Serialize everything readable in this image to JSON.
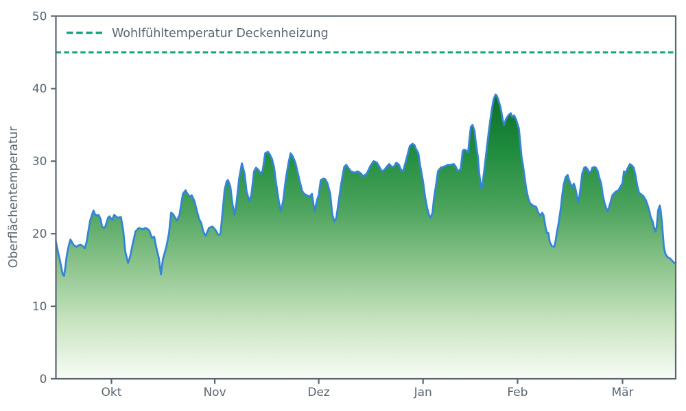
{
  "figure": {
    "background": "#ffffff",
    "axis_color": "#5a6570",
    "text_color": "#5a6570"
  },
  "chart_data": {
    "type": "area",
    "title": "",
    "xlabel": "",
    "ylabel": "Oberflächentemperatur",
    "ylim": [
      0,
      50
    ],
    "xlim_days": [
      0,
      183
    ],
    "grid": false,
    "y_ticks": [
      0,
      10,
      20,
      30,
      40,
      50
    ],
    "x_ticks": [
      {
        "day": 16.4,
        "label": "Okt"
      },
      {
        "day": 46.9,
        "label": "Nov"
      },
      {
        "day": 77.6,
        "label": "Dez"
      },
      {
        "day": 108.4,
        "label": "Jan"
      },
      {
        "day": 136.3,
        "label": "Feb"
      },
      {
        "day": 167.3,
        "label": "Mär"
      }
    ],
    "threshold": {
      "label": "Wohlfühltemperatur Deckenheizung",
      "value": 45,
      "color": "#12a57c",
      "style": "dashed"
    },
    "legend_position": "upper left",
    "series": [
      {
        "name": "Oberflächentemperatur",
        "line_color": "#3585d6",
        "fill_gradient": [
          "#0d6d26",
          "#1f8c3e",
          "#4ba35c",
          "#8cc48c",
          "#c8e4c0",
          "#f8fcf6"
        ],
        "points": [
          [
            0,
            18.9
          ],
          [
            0.6,
            17.5
          ],
          [
            1.2,
            16.3
          ],
          [
            2,
            14.4
          ],
          [
            2.4,
            14.2
          ],
          [
            2.8,
            15.4
          ],
          [
            3.2,
            17
          ],
          [
            3.8,
            18.4
          ],
          [
            4.3,
            19.2
          ],
          [
            4.9,
            18.7
          ],
          [
            5.3,
            18.4
          ],
          [
            6.1,
            18.2
          ],
          [
            6.7,
            18.4
          ],
          [
            7.3,
            18.5
          ],
          [
            8.1,
            18.2
          ],
          [
            8.5,
            18
          ],
          [
            9.1,
            18.9
          ],
          [
            9.5,
            20.1
          ],
          [
            10.1,
            21.8
          ],
          [
            11.1,
            23.2
          ],
          [
            11.5,
            22.7
          ],
          [
            12.2,
            22.5
          ],
          [
            12.6,
            22.6
          ],
          [
            13.2,
            22
          ],
          [
            13.6,
            21
          ],
          [
            14.2,
            20.8
          ],
          [
            14.6,
            21
          ],
          [
            15.4,
            22.2
          ],
          [
            15.8,
            22.4
          ],
          [
            16.6,
            21.9
          ],
          [
            17.2,
            22.6
          ],
          [
            18.2,
            22.2
          ],
          [
            19.2,
            22.3
          ],
          [
            19.9,
            20.4
          ],
          [
            20.5,
            17.5
          ],
          [
            21.3,
            16
          ],
          [
            21.9,
            16.8
          ],
          [
            22.5,
            18.2
          ],
          [
            23.5,
            20.3
          ],
          [
            24.5,
            20.8
          ],
          [
            25.5,
            20.6
          ],
          [
            26.5,
            20.8
          ],
          [
            27.5,
            20.5
          ],
          [
            28.4,
            19.4
          ],
          [
            29,
            19.6
          ],
          [
            29.6,
            18.2
          ],
          [
            30.4,
            16.6
          ],
          [
            31,
            14.4
          ],
          [
            31.6,
            16.5
          ],
          [
            32.6,
            18.2
          ],
          [
            33.4,
            20.1
          ],
          [
            34,
            22.9
          ],
          [
            34.6,
            22.7
          ],
          [
            35.7,
            21.8
          ],
          [
            36.5,
            22.6
          ],
          [
            37.5,
            25.5
          ],
          [
            38.3,
            26
          ],
          [
            38.7,
            25.6
          ],
          [
            39.5,
            25.1
          ],
          [
            40.1,
            25.3
          ],
          [
            40.9,
            24.5
          ],
          [
            41.7,
            23
          ],
          [
            42.3,
            22
          ],
          [
            42.9,
            21.5
          ],
          [
            43.5,
            20.3
          ],
          [
            44.2,
            19.7
          ],
          [
            45.2,
            20.8
          ],
          [
            46.2,
            21
          ],
          [
            47,
            20.6
          ],
          [
            48,
            19.8
          ],
          [
            48.6,
            20
          ],
          [
            49.2,
            22.9
          ],
          [
            49.8,
            26
          ],
          [
            50.4,
            27.2
          ],
          [
            50.8,
            27.4
          ],
          [
            51.5,
            26.5
          ],
          [
            52.1,
            24.2
          ],
          [
            52.7,
            22.6
          ],
          [
            53.3,
            24.2
          ],
          [
            54.1,
            27.6
          ],
          [
            54.9,
            29.7
          ],
          [
            55.7,
            28.3
          ],
          [
            56.3,
            25.8
          ],
          [
            57.1,
            24.5
          ],
          [
            57.7,
            25.3
          ],
          [
            58.5,
            28.6
          ],
          [
            59.1,
            29.1
          ],
          [
            59.8,
            28.8
          ],
          [
            60.4,
            28.3
          ],
          [
            61,
            28.6
          ],
          [
            61.8,
            31.1
          ],
          [
            62.6,
            31.3
          ],
          [
            63.2,
            30.9
          ],
          [
            63.8,
            30.3
          ],
          [
            64.4,
            29.2
          ],
          [
            65,
            27
          ],
          [
            65.8,
            24.5
          ],
          [
            66.4,
            23.1
          ],
          [
            67.1,
            24.5
          ],
          [
            67.9,
            27.6
          ],
          [
            68.7,
            29.8
          ],
          [
            69.3,
            31.1
          ],
          [
            69.9,
            30.7
          ],
          [
            70.7,
            29.8
          ],
          [
            71.3,
            28.6
          ],
          [
            71.9,
            27.4
          ],
          [
            72.7,
            25.9
          ],
          [
            73.3,
            25.5
          ],
          [
            74.1,
            25.3
          ],
          [
            74.9,
            25.1
          ],
          [
            75.6,
            25.5
          ],
          [
            76,
            24.2
          ],
          [
            76.4,
            23.1
          ],
          [
            77.2,
            24.8
          ],
          [
            77.6,
            25.3
          ],
          [
            78.2,
            27.4
          ],
          [
            79,
            27.6
          ],
          [
            79.6,
            27.5
          ],
          [
            80.2,
            26.9
          ],
          [
            81,
            25.5
          ],
          [
            81.6,
            22.6
          ],
          [
            82.2,
            21.7
          ],
          [
            82.8,
            22.2
          ],
          [
            83.5,
            24.5
          ],
          [
            84.1,
            26.5
          ],
          [
            85.1,
            29.2
          ],
          [
            85.7,
            29.5
          ],
          [
            86.3,
            29.1
          ],
          [
            87.1,
            28.6
          ],
          [
            88.1,
            28.4
          ],
          [
            89.1,
            28.6
          ],
          [
            90.1,
            28.3
          ],
          [
            90.7,
            27.9
          ],
          [
            91.8,
            28.3
          ],
          [
            92.8,
            29.3
          ],
          [
            93.8,
            30
          ],
          [
            94.8,
            29.8
          ],
          [
            95.4,
            29.3
          ],
          [
            96.2,
            28.6
          ],
          [
            97,
            28.8
          ],
          [
            97.8,
            29.3
          ],
          [
            98.4,
            29.6
          ],
          [
            99.2,
            29.2
          ],
          [
            99.9,
            29.3
          ],
          [
            100.5,
            29.8
          ],
          [
            101.3,
            29.5
          ],
          [
            101.9,
            28.8
          ],
          [
            102.5,
            28.6
          ],
          [
            103.5,
            30.3
          ],
          [
            104.5,
            32.1
          ],
          [
            105.3,
            32.4
          ],
          [
            105.9,
            32.2
          ],
          [
            106.3,
            31.7
          ],
          [
            107,
            31.1
          ],
          [
            107.6,
            29.3
          ],
          [
            108.4,
            27.2
          ],
          [
            109,
            25.1
          ],
          [
            109.6,
            23.6
          ],
          [
            110.2,
            22.5
          ],
          [
            110.6,
            22.2
          ],
          [
            111.2,
            22.9
          ],
          [
            111.6,
            24.8
          ],
          [
            112.4,
            27.2
          ],
          [
            112.8,
            28.6
          ],
          [
            113.6,
            29.1
          ],
          [
            114.2,
            29.2
          ],
          [
            114.9,
            29.3
          ],
          [
            115.7,
            29.5
          ],
          [
            116.5,
            29.5
          ],
          [
            117.5,
            29.6
          ],
          [
            118.1,
            29.2
          ],
          [
            118.7,
            28.6
          ],
          [
            119.5,
            28.9
          ],
          [
            120.1,
            31.4
          ],
          [
            120.5,
            31.6
          ],
          [
            121.1,
            31.5
          ],
          [
            121.7,
            31.2
          ],
          [
            122.1,
            33
          ],
          [
            122.5,
            34.7
          ],
          [
            123,
            35
          ],
          [
            123.6,
            34.2
          ],
          [
            124,
            32.5
          ],
          [
            124.6,
            30.5
          ],
          [
            125,
            28.3
          ],
          [
            125.6,
            26.2
          ],
          [
            126,
            27
          ],
          [
            126.6,
            29.2
          ],
          [
            127.2,
            31.7
          ],
          [
            127.8,
            34.1
          ],
          [
            128.6,
            36.8
          ],
          [
            129.2,
            38.5
          ],
          [
            129.8,
            39.2
          ],
          [
            130.2,
            39
          ],
          [
            130.6,
            38.5
          ],
          [
            131.3,
            37.4
          ],
          [
            131.9,
            35.8
          ],
          [
            132.3,
            35
          ],
          [
            132.9,
            35.8
          ],
          [
            133.7,
            36.4
          ],
          [
            134.3,
            36.6
          ],
          [
            134.7,
            36.1
          ],
          [
            135.3,
            36.3
          ],
          [
            135.9,
            35.7
          ],
          [
            136.7,
            34.5
          ],
          [
            137.5,
            30.5
          ],
          [
            137.9,
            29.5
          ],
          [
            138.8,
            26.4
          ],
          [
            139.4,
            25
          ],
          [
            140,
            24.2
          ],
          [
            140.8,
            23.9
          ],
          [
            141.4,
            23.8
          ],
          [
            141.8,
            23.7
          ],
          [
            142.4,
            22.9
          ],
          [
            143,
            22.5
          ],
          [
            143.6,
            22.9
          ],
          [
            144,
            22.5
          ],
          [
            144.6,
            20.8
          ],
          [
            145,
            20.1
          ],
          [
            145.4,
            20.1
          ],
          [
            145.8,
            18.9
          ],
          [
            146.4,
            18.3
          ],
          [
            147.1,
            18.2
          ],
          [
            147.5,
            18.9
          ],
          [
            147.9,
            20.1
          ],
          [
            148.5,
            21.7
          ],
          [
            149.1,
            23.6
          ],
          [
            149.5,
            25.3
          ],
          [
            149.9,
            26.7
          ],
          [
            150.5,
            27.8
          ],
          [
            151.1,
            28.1
          ],
          [
            151.5,
            27.4
          ],
          [
            152.1,
            26.7
          ],
          [
            152.5,
            26.5
          ],
          [
            152.9,
            26.9
          ],
          [
            153.3,
            26.4
          ],
          [
            154.2,
            24.3
          ],
          [
            154.6,
            25.3
          ],
          [
            155,
            26.7
          ],
          [
            155.4,
            28.3
          ],
          [
            156,
            29.1
          ],
          [
            156.4,
            29.2
          ],
          [
            157,
            28.9
          ],
          [
            157.4,
            28.4
          ],
          [
            158,
            28.6
          ],
          [
            158.4,
            29.1
          ],
          [
            159,
            29.2
          ],
          [
            159.4,
            29.1
          ],
          [
            160,
            28.6
          ],
          [
            160.4,
            27.8
          ],
          [
            161,
            26.9
          ],
          [
            161.4,
            25.5
          ],
          [
            162,
            24.2
          ],
          [
            162.8,
            23.1
          ],
          [
            163.3,
            23.6
          ],
          [
            163.9,
            24.6
          ],
          [
            164.3,
            25.3
          ],
          [
            164.9,
            25.6
          ],
          [
            165.3,
            25.8
          ],
          [
            166.1,
            26
          ],
          [
            166.7,
            26.5
          ],
          [
            167.3,
            27
          ],
          [
            167.7,
            28.6
          ],
          [
            168.1,
            28.3
          ],
          [
            169.1,
            29.3
          ],
          [
            169.5,
            29.6
          ],
          [
            170.1,
            29.4
          ],
          [
            170.6,
            29.1
          ],
          [
            171.2,
            27.9
          ],
          [
            171.6,
            26.7
          ],
          [
            172.2,
            25.6
          ],
          [
            172.6,
            25.5
          ],
          [
            173.2,
            25.3
          ],
          [
            173.6,
            25.1
          ],
          [
            174.2,
            24.6
          ],
          [
            174.6,
            24.1
          ],
          [
            175.2,
            23.2
          ],
          [
            175.6,
            22.3
          ],
          [
            176.2,
            21.7
          ],
          [
            176.6,
            20.8
          ],
          [
            177,
            20.3
          ],
          [
            177.4,
            21
          ],
          [
            177.8,
            23.2
          ],
          [
            178.3,
            23.9
          ],
          [
            178.5,
            23.4
          ],
          [
            178.9,
            21.7
          ],
          [
            179.3,
            19.4
          ],
          [
            179.5,
            18.2
          ],
          [
            179.9,
            17.3
          ],
          [
            180.5,
            16.8
          ],
          [
            180.9,
            16.7
          ],
          [
            181.3,
            16.6
          ],
          [
            181.9,
            16.3
          ],
          [
            182.5,
            16
          ],
          [
            183,
            16
          ]
        ]
      }
    ]
  }
}
